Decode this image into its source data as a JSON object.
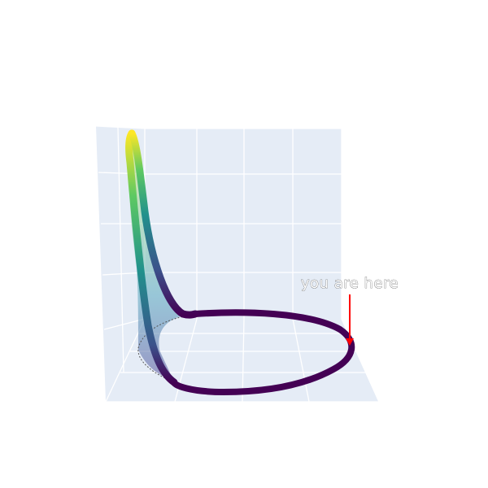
{
  "chart_data": {
    "type": "line",
    "chart_kind": "3d-curve",
    "title": "",
    "colorscale": "viridis",
    "grid": true,
    "scene_background": "#e5ecf6",
    "curve_color_base": "#440154",
    "annotation": {
      "text": "you are here",
      "arrow_color": "#ff0000"
    },
    "series": [
      {
        "t": [
          0.0,
          0.5,
          1.0,
          1.5,
          2.0,
          2.5,
          3.0,
          3.5,
          4.0,
          4.5,
          5.0,
          5.5,
          6.0,
          6.283
        ],
        "x": [
          1.0,
          0.878,
          0.54,
          0.071,
          -0.416,
          -0.801,
          -0.99,
          -0.936,
          -0.654,
          -0.211,
          0.284,
          0.709,
          0.96,
          1.0
        ],
        "y": [
          0.0,
          0.479,
          0.841,
          0.997,
          0.909,
          0.598,
          0.141,
          -0.351,
          -0.757,
          -0.978,
          -0.959,
          -0.706,
          -0.279,
          0.0
        ],
        "z": [
          0.0,
          0.0,
          0.0,
          0.02,
          0.2,
          1.0,
          0.6,
          0.2,
          0.05,
          0.0,
          0.0,
          0.0,
          0.0,
          0.0
        ]
      }
    ]
  }
}
